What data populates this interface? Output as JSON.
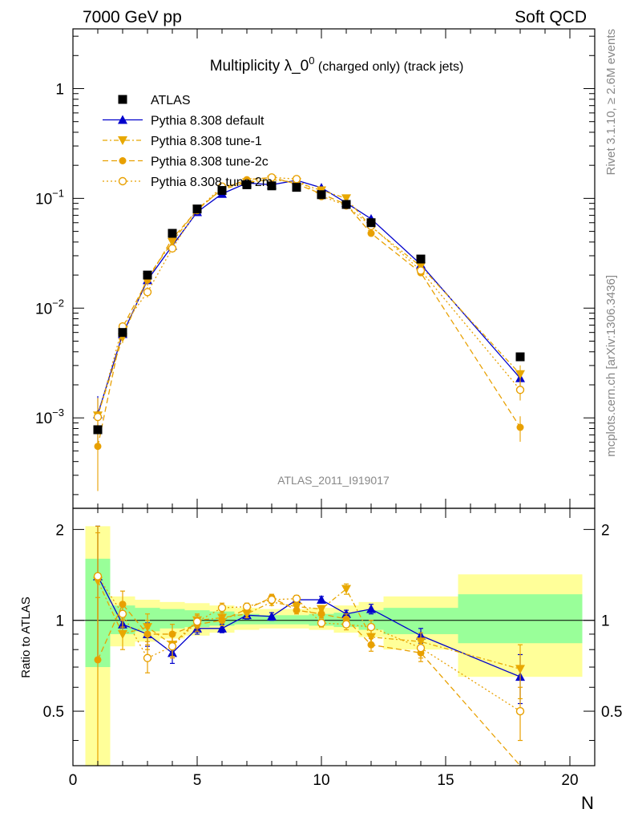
{
  "header": {
    "left": "7000 GeV pp",
    "right": "Soft QCD"
  },
  "side_text": {
    "rivet": "Rivet 3.1.10, ≥ 2.6M events",
    "mcplots": "mcplots.cern.ch [arXiv:1306.3436]"
  },
  "chart_data": {
    "type": "scatter",
    "title_main": "Multiplicity λ_0",
    "title_sup": "0",
    "title_suffix": " (charged only) (track jets)",
    "analysis_tag": "ATLAS_2011_I919017",
    "xlabel": "N",
    "ratio_ylabel": "Ratio to ATLAS",
    "xlim": [
      0,
      21
    ],
    "ylim_main": [
      0.00015,
      3.5
    ],
    "ylog_main": true,
    "ylim_ratio": [
      0.33,
      2.35
    ],
    "ylog_ratio": true,
    "x_ticks": [
      "0",
      "5",
      "10",
      "15",
      "20"
    ],
    "y_ticks_main": [
      {
        "value": 1,
        "base": "1",
        "exp": ""
      },
      {
        "value": 0.1,
        "base": "10",
        "exp": "−1"
      },
      {
        "value": 0.01,
        "base": "10",
        "exp": "−2"
      },
      {
        "value": 0.001,
        "base": "10",
        "exp": "−3"
      }
    ],
    "y_ticks_ratio": [
      {
        "value": 2,
        "label": "2"
      },
      {
        "value": 1,
        "label": "1"
      },
      {
        "value": 0.5,
        "label": "0.5"
      }
    ],
    "data": {
      "name": "ATLAS",
      "color": "#000000",
      "x": [
        1,
        2,
        3,
        4,
        5,
        6,
        7,
        8,
        9,
        10,
        11,
        12,
        14,
        18
      ],
      "y": [
        0.00078,
        0.006,
        0.02,
        0.048,
        0.08,
        0.118,
        0.133,
        0.13,
        0.126,
        0.108,
        0.088,
        0.06,
        0.028,
        0.0036
      ],
      "bins": [
        [
          0.5,
          1.5
        ],
        [
          1.5,
          2.5
        ],
        [
          2.5,
          3.5
        ],
        [
          3.5,
          4.5
        ],
        [
          4.5,
          5.5
        ],
        [
          5.5,
          6.5
        ],
        [
          6.5,
          7.5
        ],
        [
          7.5,
          8.5
        ],
        [
          8.5,
          9.5
        ],
        [
          9.5,
          10.5
        ],
        [
          10.5,
          11.5
        ],
        [
          11.5,
          12.5
        ],
        [
          12.5,
          15.5
        ],
        [
          15.5,
          20.5
        ]
      ],
      "band_green": [
        [
          0.7,
          1.6
        ],
        [
          0.9,
          1.12
        ],
        [
          0.92,
          1.1
        ],
        [
          0.94,
          1.09
        ],
        [
          0.95,
          1.08
        ],
        [
          0.96,
          1.07
        ],
        [
          0.97,
          1.05
        ],
        [
          0.97,
          1.04
        ],
        [
          0.97,
          1.04
        ],
        [
          0.96,
          1.05
        ],
        [
          0.95,
          1.06
        ],
        [
          0.93,
          1.08
        ],
        [
          0.9,
          1.1
        ],
        [
          0.84,
          1.22
        ]
      ],
      "band_yellow": [
        [
          0.32,
          2.05
        ],
        [
          0.82,
          1.2
        ],
        [
          0.85,
          1.17
        ],
        [
          0.87,
          1.15
        ],
        [
          0.89,
          1.14
        ],
        [
          0.91,
          1.12
        ],
        [
          0.93,
          1.1
        ],
        [
          0.94,
          1.09
        ],
        [
          0.94,
          1.09
        ],
        [
          0.93,
          1.1
        ],
        [
          0.91,
          1.12
        ],
        [
          0.88,
          1.15
        ],
        [
          0.8,
          1.2
        ],
        [
          0.65,
          1.42
        ]
      ]
    },
    "series": [
      {
        "name": "Pythia 8.308 default",
        "color": "#0000cc",
        "marker": "triangle-up",
        "line": "solid",
        "x": [
          1,
          2,
          3,
          4,
          5,
          6,
          7,
          8,
          9,
          10,
          11,
          12,
          14,
          18
        ],
        "y": [
          0.00108,
          0.0058,
          0.018,
          0.037,
          0.075,
          0.11,
          0.138,
          0.133,
          0.146,
          0.125,
          0.091,
          0.065,
          0.025,
          0.0023
        ],
        "ratio": [
          1.4,
          0.97,
          0.9,
          0.78,
          0.94,
          0.94,
          1.04,
          1.03,
          1.17,
          1.17,
          1.05,
          1.09,
          0.89,
          0.65
        ],
        "ratio_err": [
          0.65,
          0.07,
          0.08,
          0.06,
          0.04,
          0.03,
          0.03,
          0.03,
          0.03,
          0.03,
          0.03,
          0.04,
          0.05,
          0.12
        ]
      },
      {
        "name": "Pythia 8.308 tune-1",
        "color": "#e8a800",
        "marker": "triangle-down",
        "line": "dashdot",
        "x": [
          1,
          2,
          3,
          4,
          5,
          6,
          7,
          8,
          9,
          10,
          11,
          12,
          14,
          18
        ],
        "y": [
          0.00105,
          0.0054,
          0.019,
          0.04,
          0.08,
          0.12,
          0.14,
          0.148,
          0.14,
          0.118,
          0.1,
          0.055,
          0.024,
          0.0025
        ],
        "ratio": [
          1.35,
          0.9,
          0.95,
          0.83,
          1.0,
          1.02,
          1.05,
          1.15,
          1.11,
          1.09,
          1.27,
          0.88,
          0.85,
          0.69
        ],
        "ratio_err": [
          0.6,
          0.1,
          0.1,
          0.07,
          0.05,
          0.04,
          0.03,
          0.03,
          0.03,
          0.03,
          0.05,
          0.05,
          0.06,
          0.14
        ]
      },
      {
        "name": "Pythia 8.308 tune-2c",
        "color": "#e8a000",
        "marker": "circle-filled",
        "line": "dashed",
        "x": [
          1,
          2,
          3,
          4,
          5,
          6,
          7,
          8,
          9,
          10,
          11,
          12,
          14,
          18
        ],
        "y": [
          0.00055,
          0.0067,
          0.018,
          0.043,
          0.078,
          0.122,
          0.148,
          0.155,
          0.135,
          0.11,
          0.088,
          0.048,
          0.021,
          0.00082
        ],
        "ratio": [
          0.74,
          1.13,
          0.9,
          0.9,
          0.97,
          1.0,
          1.09,
          1.19,
          1.08,
          1.05,
          1.01,
          0.83,
          0.78,
          0.23
        ],
        "ratio_err": [
          0.45,
          0.12,
          0.1,
          0.07,
          0.05,
          0.04,
          0.03,
          0.03,
          0.03,
          0.03,
          0.04,
          0.04,
          0.05,
          0.06
        ]
      },
      {
        "name": "Pythia 8.308 tune-2m",
        "color": "#e8a000",
        "marker": "circle-open",
        "line": "dotted",
        "x": [
          1,
          2,
          3,
          4,
          5,
          6,
          7,
          8,
          9,
          10,
          11,
          12,
          14,
          18
        ],
        "y": [
          0.00102,
          0.0068,
          0.014,
          0.035,
          0.078,
          0.128,
          0.14,
          0.155,
          0.15,
          0.105,
          0.086,
          0.056,
          0.022,
          0.0018
        ],
        "ratio": [
          1.4,
          1.05,
          0.75,
          0.82,
          0.99,
          1.1,
          1.11,
          1.17,
          1.18,
          0.98,
          0.97,
          0.95,
          0.81,
          0.5
        ],
        "ratio_err": [
          0.65,
          0.1,
          0.08,
          0.07,
          0.05,
          0.04,
          0.03,
          0.03,
          0.03,
          0.03,
          0.04,
          0.05,
          0.06,
          0.1
        ]
      }
    ]
  }
}
